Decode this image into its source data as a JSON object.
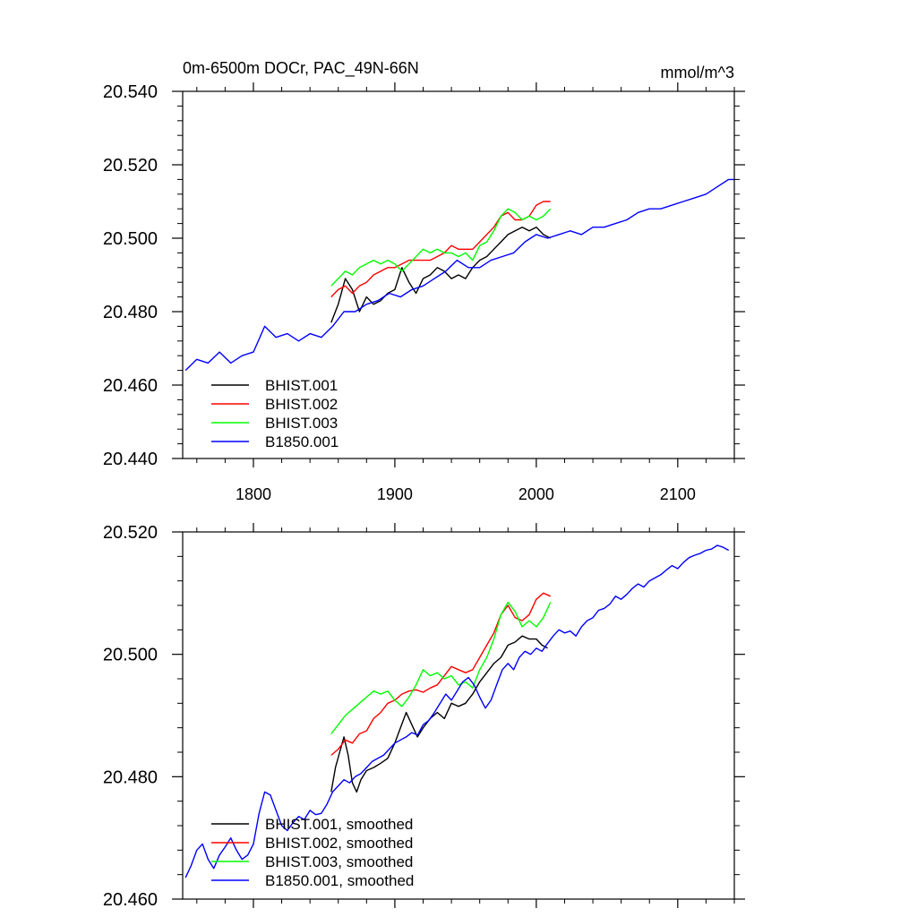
{
  "chart_data": [
    {
      "type": "line",
      "title_left": "0m-6500m DOCr, PAC_49N-66N",
      "title_right": "mmol/m^3",
      "xlim": [
        1750,
        2140
      ],
      "ylim": [
        20.44,
        20.54
      ],
      "x_ticks": [
        1800,
        1900,
        2000,
        2100
      ],
      "x_tick_labels": [
        "1800",
        "1900",
        "2000",
        "2100"
      ],
      "y_ticks": [
        20.44,
        20.46,
        20.48,
        20.5,
        20.52,
        20.54
      ],
      "y_tick_labels": [
        "20.440",
        "20.460",
        "20.480",
        "20.500",
        "20.520",
        "20.540"
      ],
      "legend": [
        "BHIST.001",
        "BHIST.002",
        "BHIST.003",
        "B1850.001"
      ],
      "colors": [
        "#000000",
        "#ff0000",
        "#00ff00",
        "#0000ff"
      ],
      "series": [
        {
          "name": "BHIST.001",
          "color": "#000000",
          "x": [
            1855,
            1860,
            1865,
            1870,
            1875,
            1880,
            1885,
            1890,
            1895,
            1900,
            1905,
            1910,
            1915,
            1920,
            1925,
            1930,
            1935,
            1940,
            1945,
            1950,
            1955,
            1960,
            1965,
            1970,
            1975,
            1980,
            1985,
            1990,
            1995,
            2000,
            2005,
            2010
          ],
          "y": [
            20.477,
            20.482,
            20.489,
            20.486,
            20.48,
            20.484,
            20.482,
            20.483,
            20.485,
            20.486,
            20.492,
            20.488,
            20.485,
            20.489,
            20.49,
            20.492,
            20.491,
            20.489,
            20.49,
            20.489,
            20.492,
            20.494,
            20.495,
            20.497,
            20.499,
            20.501,
            20.502,
            20.503,
            20.502,
            20.503,
            20.501,
            20.5
          ]
        },
        {
          "name": "BHIST.002",
          "color": "#ff0000",
          "x": [
            1855,
            1860,
            1865,
            1870,
            1875,
            1880,
            1885,
            1890,
            1895,
            1900,
            1905,
            1910,
            1915,
            1920,
            1925,
            1930,
            1935,
            1940,
            1945,
            1950,
            1955,
            1960,
            1965,
            1970,
            1975,
            1980,
            1985,
            1990,
            1995,
            2000,
            2005,
            2010
          ],
          "y": [
            20.484,
            20.486,
            20.487,
            20.485,
            20.487,
            20.488,
            20.49,
            20.491,
            20.492,
            20.492,
            20.493,
            20.494,
            20.494,
            20.494,
            20.494,
            20.495,
            20.496,
            20.498,
            20.497,
            20.497,
            20.497,
            20.499,
            20.501,
            20.503,
            20.506,
            20.507,
            20.505,
            20.505,
            20.506,
            20.509,
            20.51,
            20.51
          ]
        },
        {
          "name": "BHIST.003",
          "color": "#00ff00",
          "x": [
            1855,
            1860,
            1865,
            1870,
            1875,
            1880,
            1885,
            1890,
            1895,
            1900,
            1905,
            1910,
            1915,
            1920,
            1925,
            1930,
            1935,
            1940,
            1945,
            1950,
            1955,
            1960,
            1965,
            1970,
            1975,
            1980,
            1985,
            1990,
            1995,
            2000,
            2005,
            2010
          ],
          "y": [
            20.487,
            20.489,
            20.491,
            20.49,
            20.492,
            20.493,
            20.494,
            20.493,
            20.494,
            20.493,
            20.491,
            20.493,
            20.495,
            20.497,
            20.496,
            20.497,
            20.496,
            20.496,
            20.495,
            20.496,
            20.494,
            20.498,
            20.499,
            20.502,
            20.506,
            20.508,
            20.507,
            20.505,
            20.506,
            20.505,
            20.506,
            20.508
          ]
        },
        {
          "name": "B1850.001",
          "color": "#0000ff",
          "x": [
            1752,
            1760,
            1768,
            1776,
            1784,
            1792,
            1800,
            1808,
            1816,
            1824,
            1832,
            1840,
            1848,
            1856,
            1864,
            1872,
            1880,
            1888,
            1896,
            1904,
            1912,
            1920,
            1928,
            1936,
            1944,
            1952,
            1960,
            1968,
            1976,
            1984,
            1992,
            2000,
            2008,
            2016,
            2024,
            2032,
            2040,
            2048,
            2056,
            2064,
            2072,
            2080,
            2088,
            2096,
            2104,
            2112,
            2120,
            2128,
            2136,
            2140
          ],
          "y": [
            20.464,
            20.467,
            20.466,
            20.469,
            20.466,
            20.468,
            20.469,
            20.476,
            20.473,
            20.474,
            20.472,
            20.474,
            20.473,
            20.476,
            20.48,
            20.48,
            20.482,
            20.483,
            20.485,
            20.484,
            20.486,
            20.487,
            20.489,
            20.491,
            20.494,
            20.492,
            20.492,
            20.494,
            20.495,
            20.496,
            20.499,
            20.501,
            20.5,
            20.501,
            20.502,
            20.501,
            20.503,
            20.503,
            20.504,
            20.505,
            20.507,
            20.508,
            20.508,
            20.509,
            20.51,
            20.511,
            20.512,
            20.514,
            20.516,
            20.516
          ]
        }
      ]
    },
    {
      "type": "line",
      "xlim": [
        1750,
        2140
      ],
      "ylim": [
        20.46,
        20.52
      ],
      "x_ticks": [
        1800,
        1900,
        2000,
        2100
      ],
      "y_ticks": [
        20.46,
        20.48,
        20.5,
        20.52
      ],
      "y_tick_labels": [
        "20.460",
        "20.480",
        "20.500",
        "20.520"
      ],
      "legend": [
        "BHIST.001, smoothed",
        "BHIST.002, smoothed",
        "BHIST.003, smoothed",
        "B1850.001, smoothed"
      ],
      "colors": [
        "#000000",
        "#ff0000",
        "#00ff00",
        "#0000ff"
      ],
      "series": [
        {
          "name": "BHIST.001, smoothed",
          "color": "#000000",
          "x": [
            1855,
            1858,
            1861,
            1864,
            1867,
            1870,
            1873,
            1876,
            1880,
            1885,
            1890,
            1895,
            1900,
            1904,
            1908,
            1912,
            1916,
            1920,
            1925,
            1930,
            1935,
            1940,
            1945,
            1950,
            1955,
            1960,
            1965,
            1970,
            1975,
            1980,
            1985,
            1990,
            1995,
            2000,
            2004,
            2008
          ],
          "y": [
            20.4775,
            20.4815,
            20.484,
            20.4865,
            20.4835,
            20.479,
            20.4775,
            20.4795,
            20.481,
            20.4815,
            20.4822,
            20.483,
            20.4855,
            20.488,
            20.4905,
            20.4885,
            20.4865,
            20.488,
            20.4895,
            20.4905,
            20.4895,
            20.492,
            20.4915,
            20.492,
            20.4935,
            20.4955,
            20.497,
            20.4985,
            20.4995,
            20.5015,
            20.502,
            20.503,
            20.5025,
            20.5025,
            20.5015,
            20.501
          ]
        },
        {
          "name": "BHIST.002, smoothed",
          "color": "#ff0000",
          "x": [
            1855,
            1860,
            1865,
            1870,
            1875,
            1880,
            1885,
            1890,
            1895,
            1900,
            1905,
            1910,
            1915,
            1920,
            1925,
            1930,
            1935,
            1940,
            1945,
            1950,
            1955,
            1960,
            1965,
            1970,
            1975,
            1980,
            1985,
            1990,
            1995,
            2000,
            2005,
            2010
          ],
          "y": [
            20.4835,
            20.4845,
            20.486,
            20.4855,
            20.487,
            20.4875,
            20.4895,
            20.4905,
            20.492,
            20.4925,
            20.4935,
            20.494,
            20.4942,
            20.4938,
            20.4945,
            20.495,
            20.4965,
            20.498,
            20.4975,
            20.497,
            20.4975,
            20.4995,
            20.5015,
            20.5035,
            20.5065,
            20.508,
            20.506,
            20.5055,
            20.5065,
            20.509,
            20.51,
            20.5095
          ]
        },
        {
          "name": "BHIST.003, smoothed",
          "color": "#00ff00",
          "x": [
            1855,
            1860,
            1865,
            1870,
            1875,
            1880,
            1885,
            1890,
            1895,
            1900,
            1905,
            1910,
            1915,
            1920,
            1925,
            1930,
            1935,
            1940,
            1945,
            1950,
            1955,
            1960,
            1965,
            1970,
            1975,
            1980,
            1985,
            1990,
            1995,
            2000,
            2005,
            2010
          ],
          "y": [
            20.487,
            20.4885,
            20.49,
            20.491,
            20.492,
            20.493,
            20.494,
            20.4935,
            20.494,
            20.4925,
            20.4915,
            20.493,
            20.495,
            20.4975,
            20.4965,
            20.497,
            20.496,
            20.4965,
            20.495,
            20.4955,
            20.4945,
            20.4975,
            20.4995,
            20.5025,
            20.5065,
            20.5085,
            20.507,
            20.5045,
            20.5055,
            20.5045,
            20.506,
            20.5085
          ]
        },
        {
          "name": "B1850.001, smoothed",
          "color": "#0000ff",
          "x": [
            1752,
            1756,
            1760,
            1764,
            1768,
            1772,
            1776,
            1780,
            1784,
            1788,
            1792,
            1796,
            1800,
            1804,
            1808,
            1812,
            1816,
            1820,
            1824,
            1828,
            1832,
            1836,
            1840,
            1844,
            1848,
            1852,
            1856,
            1860,
            1864,
            1868,
            1872,
            1876,
            1880,
            1884,
            1888,
            1892,
            1896,
            1900,
            1904,
            1908,
            1912,
            1916,
            1920,
            1924,
            1928,
            1932,
            1936,
            1940,
            1944,
            1948,
            1952,
            1956,
            1960,
            1964,
            1968,
            1972,
            1976,
            1980,
            1984,
            1988,
            1992,
            1996,
            2000,
            2004,
            2008,
            2012,
            2016,
            2020,
            2024,
            2028,
            2032,
            2036,
            2040,
            2044,
            2048,
            2052,
            2056,
            2060,
            2064,
            2068,
            2072,
            2076,
            2080,
            2084,
            2088,
            2092,
            2096,
            2100,
            2104,
            2108,
            2112,
            2116,
            2120,
            2124,
            2128,
            2132,
            2136
          ],
          "y": [
            20.4635,
            20.4655,
            20.468,
            20.469,
            20.4665,
            20.465,
            20.4672,
            20.4685,
            20.47,
            20.468,
            20.4665,
            20.4672,
            20.469,
            20.474,
            20.4775,
            20.477,
            20.4745,
            20.472,
            20.4712,
            20.4725,
            20.4735,
            20.473,
            20.4745,
            20.4738,
            20.474,
            20.4755,
            20.4775,
            20.4785,
            20.4795,
            20.479,
            20.48,
            20.4805,
            20.4815,
            20.4825,
            20.483,
            20.4835,
            20.4845,
            20.4855,
            20.486,
            20.4865,
            20.4872,
            20.4868,
            20.4885,
            20.4892,
            20.4905,
            20.492,
            20.4935,
            20.4925,
            20.494,
            20.4955,
            20.4962,
            20.495,
            20.493,
            20.4912,
            20.4925,
            20.495,
            20.4975,
            20.4985,
            20.4975,
            20.4995,
            20.5005,
            20.5,
            20.501,
            20.5005,
            20.5018,
            20.503,
            20.504,
            20.5035,
            20.5038,
            20.503,
            20.5045,
            20.5055,
            20.506,
            20.5072,
            20.5075,
            20.5082,
            20.5095,
            20.509,
            20.5098,
            20.5108,
            20.5115,
            20.511,
            20.512,
            20.5125,
            20.513,
            20.5138,
            20.5145,
            20.514,
            20.515,
            20.5158,
            20.5162,
            20.5165,
            20.517,
            20.5172,
            20.5178,
            20.5175,
            20.517
          ]
        }
      ]
    }
  ]
}
